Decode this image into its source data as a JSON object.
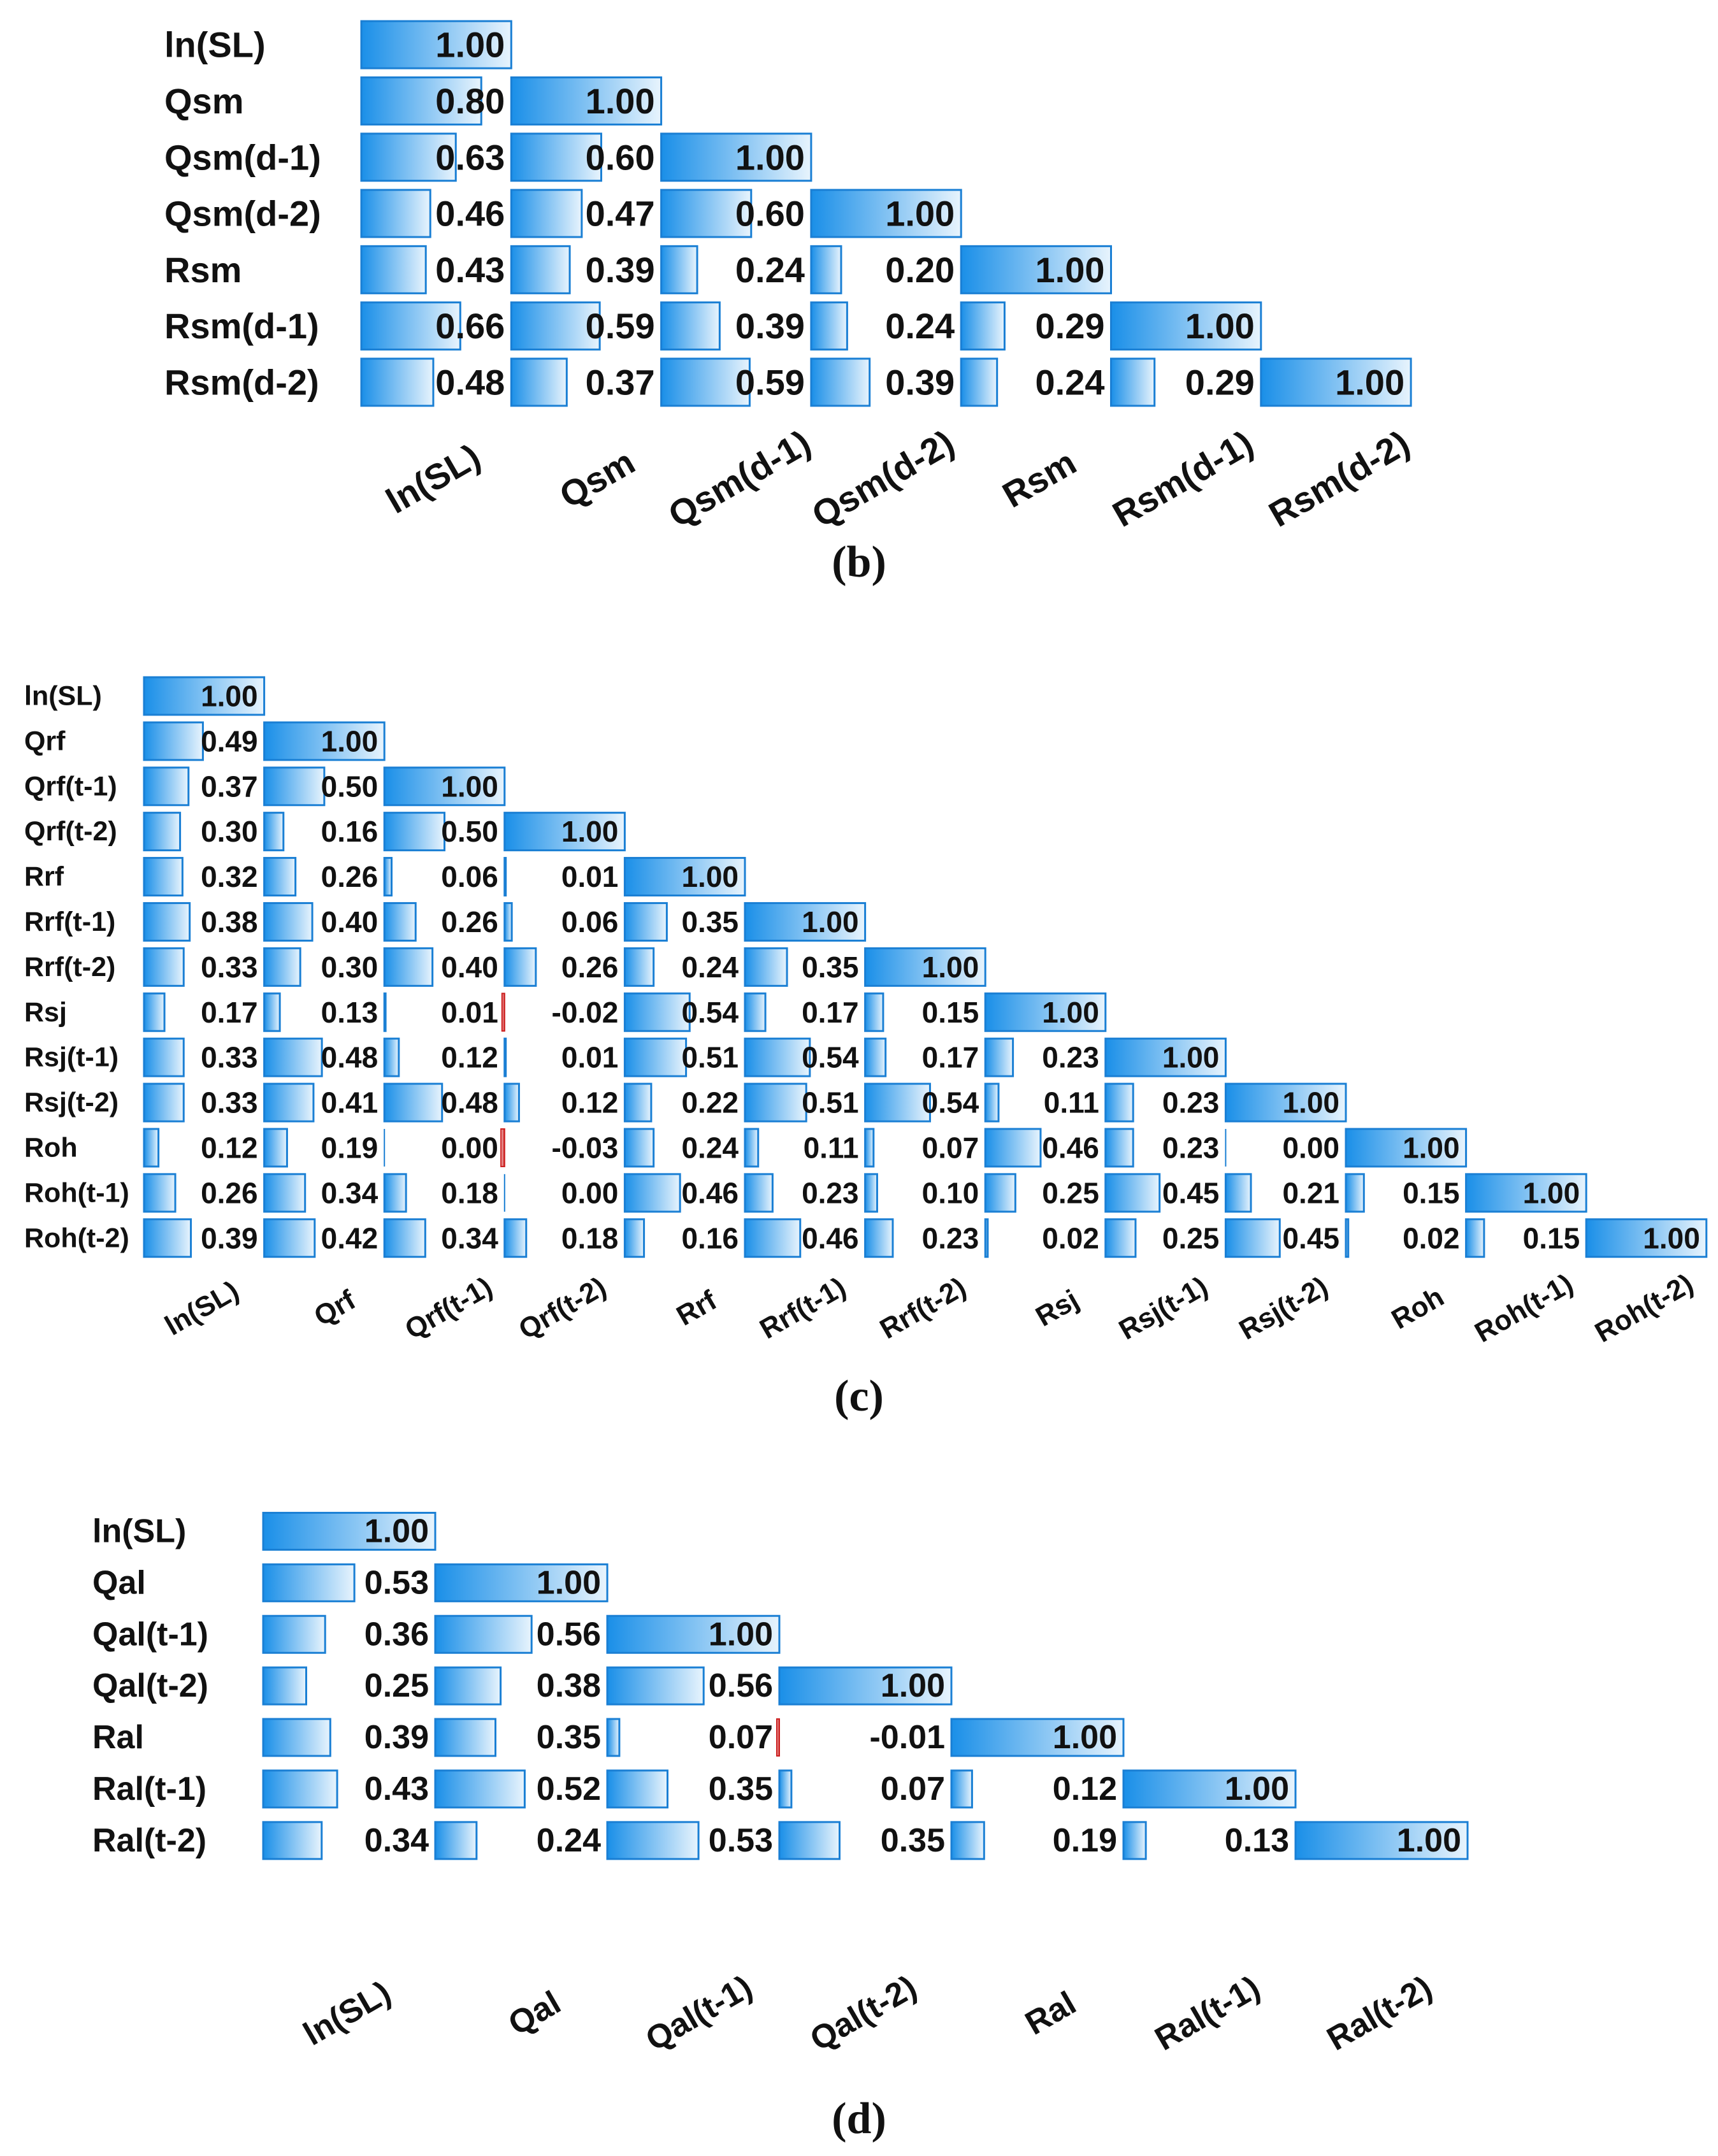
{
  "theme": {
    "bar_dark": "#1a8fe8",
    "bar_light": "#e8f4fd",
    "bar_edge": "#1a7fd4",
    "neg_bar": "#cc1e1e",
    "text": "#111111"
  },
  "chart_data": [
    {
      "type": "bar",
      "subtype": "lower-triangular correlation matrix with in-cell data bars",
      "caption": "(b)",
      "value_range": [
        0,
        1
      ],
      "variables": [
        "ln(SL)",
        "Qsm",
        "Qsm(d-1)",
        "Qsm(d-2)",
        "Rsm",
        "Rsm(d-1)",
        "Rsm(d-2)"
      ],
      "labels": [
        "ln(SL)",
        "Qsm",
        "Qsm(d-1)",
        "Qsm(d-2)",
        "Rsm",
        "Rsm(d-1)",
        "Rsm(d-2)"
      ],
      "values": [
        [
          "1.00"
        ],
        [
          "0.80",
          "1.00"
        ],
        [
          "0.63",
          "0.60",
          "1.00"
        ],
        [
          "0.46",
          "0.47",
          "0.60",
          "1.00"
        ],
        [
          "0.43",
          "0.39",
          "0.24",
          "0.20",
          "1.00"
        ],
        [
          "0.66",
          "0.59",
          "0.39",
          "0.24",
          "0.29",
          "1.00"
        ],
        [
          "0.48",
          "0.37",
          "0.59",
          "0.39",
          "0.24",
          "0.29",
          "1.00"
        ]
      ]
    },
    {
      "type": "bar",
      "subtype": "lower-triangular correlation matrix with in-cell data bars",
      "caption": "(c)",
      "value_range": [
        0,
        1
      ],
      "variables": [
        "ln(SL)",
        "Qrf",
        "Qrf(t-1)",
        "Qrf(t-2)",
        "Rrf",
        "Rrf(t-1)",
        "Rrf(t-2)",
        "Rsj",
        "Rsj(t-1)",
        "Rsj(t-2)",
        "Roh",
        "Roh(t-1)",
        "Roh(t-2)"
      ],
      "labels": [
        "ln(SL)",
        "Qrf",
        "Qrf(t-1)",
        "Qrf(t-2)",
        "Rrf",
        "Rrf(t-1)",
        "Rrf(t-2)",
        "Rsj",
        "Rsj(t-1)",
        "Rsj(t-2)",
        "Roh",
        "Roh(t-1)",
        "Roh(t-2)"
      ],
      "values": [
        [
          "1.00"
        ],
        [
          "0.49",
          "1.00"
        ],
        [
          "0.37",
          "0.50",
          "1.00"
        ],
        [
          "0.30",
          "0.16",
          "0.50",
          "1.00"
        ],
        [
          "0.32",
          "0.26",
          "0.06",
          "0.01",
          "1.00"
        ],
        [
          "0.38",
          "0.40",
          "0.26",
          "0.06",
          "0.35",
          "1.00"
        ],
        [
          "0.33",
          "0.30",
          "0.40",
          "0.26",
          "0.24",
          "0.35",
          "1.00"
        ],
        [
          "0.17",
          "0.13",
          "0.01",
          "-0.02",
          "0.54",
          "0.17",
          "0.15",
          "1.00"
        ],
        [
          "0.33",
          "0.48",
          "0.12",
          "0.01",
          "0.51",
          "0.54",
          "0.17",
          "0.23",
          "1.00"
        ],
        [
          "0.33",
          "0.41",
          "0.48",
          "0.12",
          "0.22",
          "0.51",
          "0.54",
          "0.11",
          "0.23",
          "1.00"
        ],
        [
          "0.12",
          "0.19",
          "0.00",
          "-0.03",
          "0.24",
          "0.11",
          "0.07",
          "0.46",
          "0.23",
          "0.00",
          "1.00"
        ],
        [
          "0.26",
          "0.34",
          "0.18",
          "0.00",
          "0.46",
          "0.23",
          "0.10",
          "0.25",
          "0.45",
          "0.21",
          "0.15",
          "1.00"
        ],
        [
          "0.39",
          "0.42",
          "0.34",
          "0.18",
          "0.16",
          "0.46",
          "0.23",
          "0.02",
          "0.25",
          "0.45",
          "0.02",
          "0.15",
          "1.00"
        ]
      ]
    },
    {
      "type": "bar",
      "subtype": "lower-triangular correlation matrix with in-cell data bars",
      "caption": "(d)",
      "value_range": [
        0,
        1
      ],
      "variables": [
        "ln(SL)",
        "Qal",
        "Qal(t-1)",
        "Qal(t-2)",
        "Ral",
        "Ral(t-1)",
        "Ral(t-2)"
      ],
      "labels": [
        "ln(SL)",
        "Qal",
        "Qal(t-1)",
        "Qal(t-2)",
        "Ral",
        "Ral(t-1)",
        "Ral(t-2)"
      ],
      "values": [
        [
          "1.00"
        ],
        [
          "0.53",
          "1.00"
        ],
        [
          "0.36",
          "0.56",
          "1.00"
        ],
        [
          "0.25",
          "0.38",
          "0.56",
          "1.00"
        ],
        [
          "0.39",
          "0.35",
          "0.07",
          "-0.01",
          "1.00"
        ],
        [
          "0.43",
          "0.52",
          "0.35",
          "0.07",
          "0.12",
          "1.00"
        ],
        [
          "0.34",
          "0.24",
          "0.53",
          "0.35",
          "0.19",
          "0.13",
          "1.00"
        ]
      ]
    }
  ]
}
